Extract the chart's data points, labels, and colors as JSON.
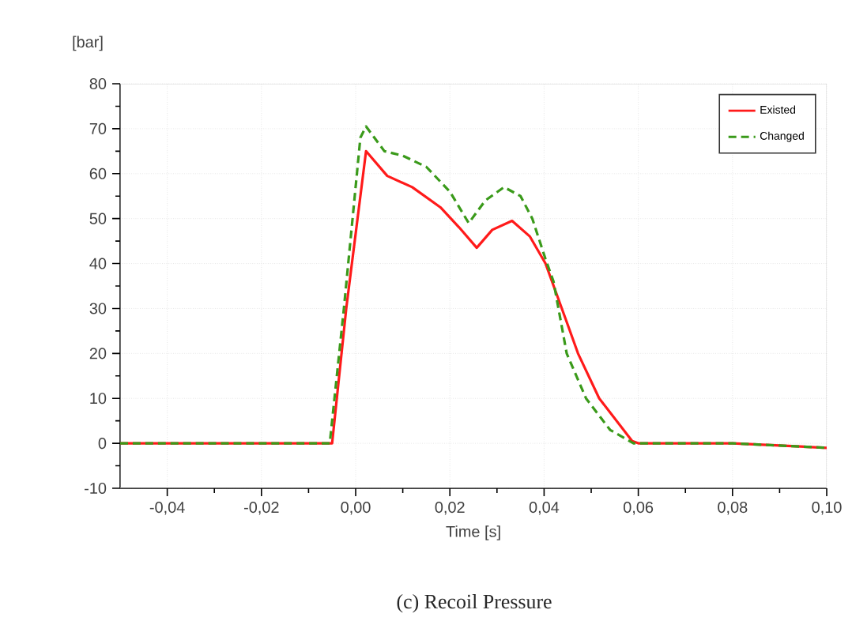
{
  "chart_data": {
    "type": "line",
    "title": "(c) Recoil Pressure",
    "xlabel": "Time [s]",
    "ylabel": "[bar]",
    "xlim": [
      -0.05,
      0.1
    ],
    "xticks": [
      {
        "value": -0.04,
        "label": "-0,04"
      },
      {
        "value": -0.02,
        "label": "-0,02"
      },
      {
        "value": 0.0,
        "label": "0,00"
      },
      {
        "value": 0.02,
        "label": "0,02"
      },
      {
        "value": 0.04,
        "label": "0,04"
      },
      {
        "value": 0.06,
        "label": "0,06"
      },
      {
        "value": 0.08,
        "label": "0,08"
      },
      {
        "value": 0.1,
        "label": "0,10"
      }
    ],
    "ylim": [
      -10,
      80
    ],
    "yticks": [
      -10,
      0,
      10,
      20,
      30,
      40,
      50,
      60,
      70,
      80
    ],
    "grid": true,
    "legend": "top right",
    "series": [
      {
        "name": "Existed",
        "color": "#ff1a1a",
        "line_style": "solid",
        "x": [
          -0.05,
          -0.005,
          -0.002,
          0.0022,
          0.0067,
          0.012,
          0.018,
          0.022,
          0.0257,
          0.029,
          0.0332,
          0.037,
          0.0403,
          0.0448,
          0.0472,
          0.0517,
          0.0587,
          0.06,
          0.08,
          0.09,
          0.1
        ],
        "values": [
          0,
          0,
          30,
          65,
          59.5,
          57,
          52.5,
          48,
          43.5,
          47.5,
          49.5,
          46,
          40,
          27,
          20,
          10,
          0.5,
          0,
          0,
          -0.5,
          -1
        ]
      },
      {
        "name": "Changed",
        "color": "#3a9a1a",
        "line_style": "dashed",
        "x": [
          -0.05,
          -0.0055,
          -0.0025,
          0.001,
          0.0022,
          0.0061,
          0.01,
          0.015,
          0.02,
          0.024,
          0.0275,
          0.0315,
          0.035,
          0.0375,
          0.0403,
          0.042,
          0.0448,
          0.0489,
          0.054,
          0.059,
          0.08,
          0.09,
          0.1
        ],
        "values": [
          0,
          0,
          30,
          68,
          70.5,
          65,
          64,
          61.5,
          56,
          49,
          54,
          57,
          55,
          50,
          41,
          36,
          20,
          10,
          3,
          0,
          0,
          -0.5,
          -1
        ]
      }
    ]
  }
}
